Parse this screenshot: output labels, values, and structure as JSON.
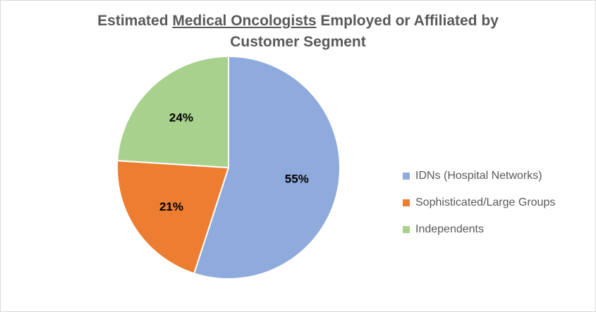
{
  "title": {
    "prefix": "Estimated ",
    "underlined": "Medical Oncologists",
    "suffix": " Employed or Affiliated by",
    "line2": "Customer Segment"
  },
  "chart_data": {
    "type": "pie",
    "title": "Estimated Medical Oncologists Employed or Affiliated by Customer Segment",
    "categories": [
      "IDNs (Hospital Networks)",
      "Sophisticated/Large Groups",
      "Independents"
    ],
    "values": [
      55,
      21,
      24
    ],
    "data_labels": [
      "55%",
      "21%",
      "24%"
    ],
    "colors": [
      "#8faadc",
      "#ed7d31",
      "#a9d18e"
    ],
    "start": "12 o'clock, clockwise",
    "legend_position": "right"
  }
}
